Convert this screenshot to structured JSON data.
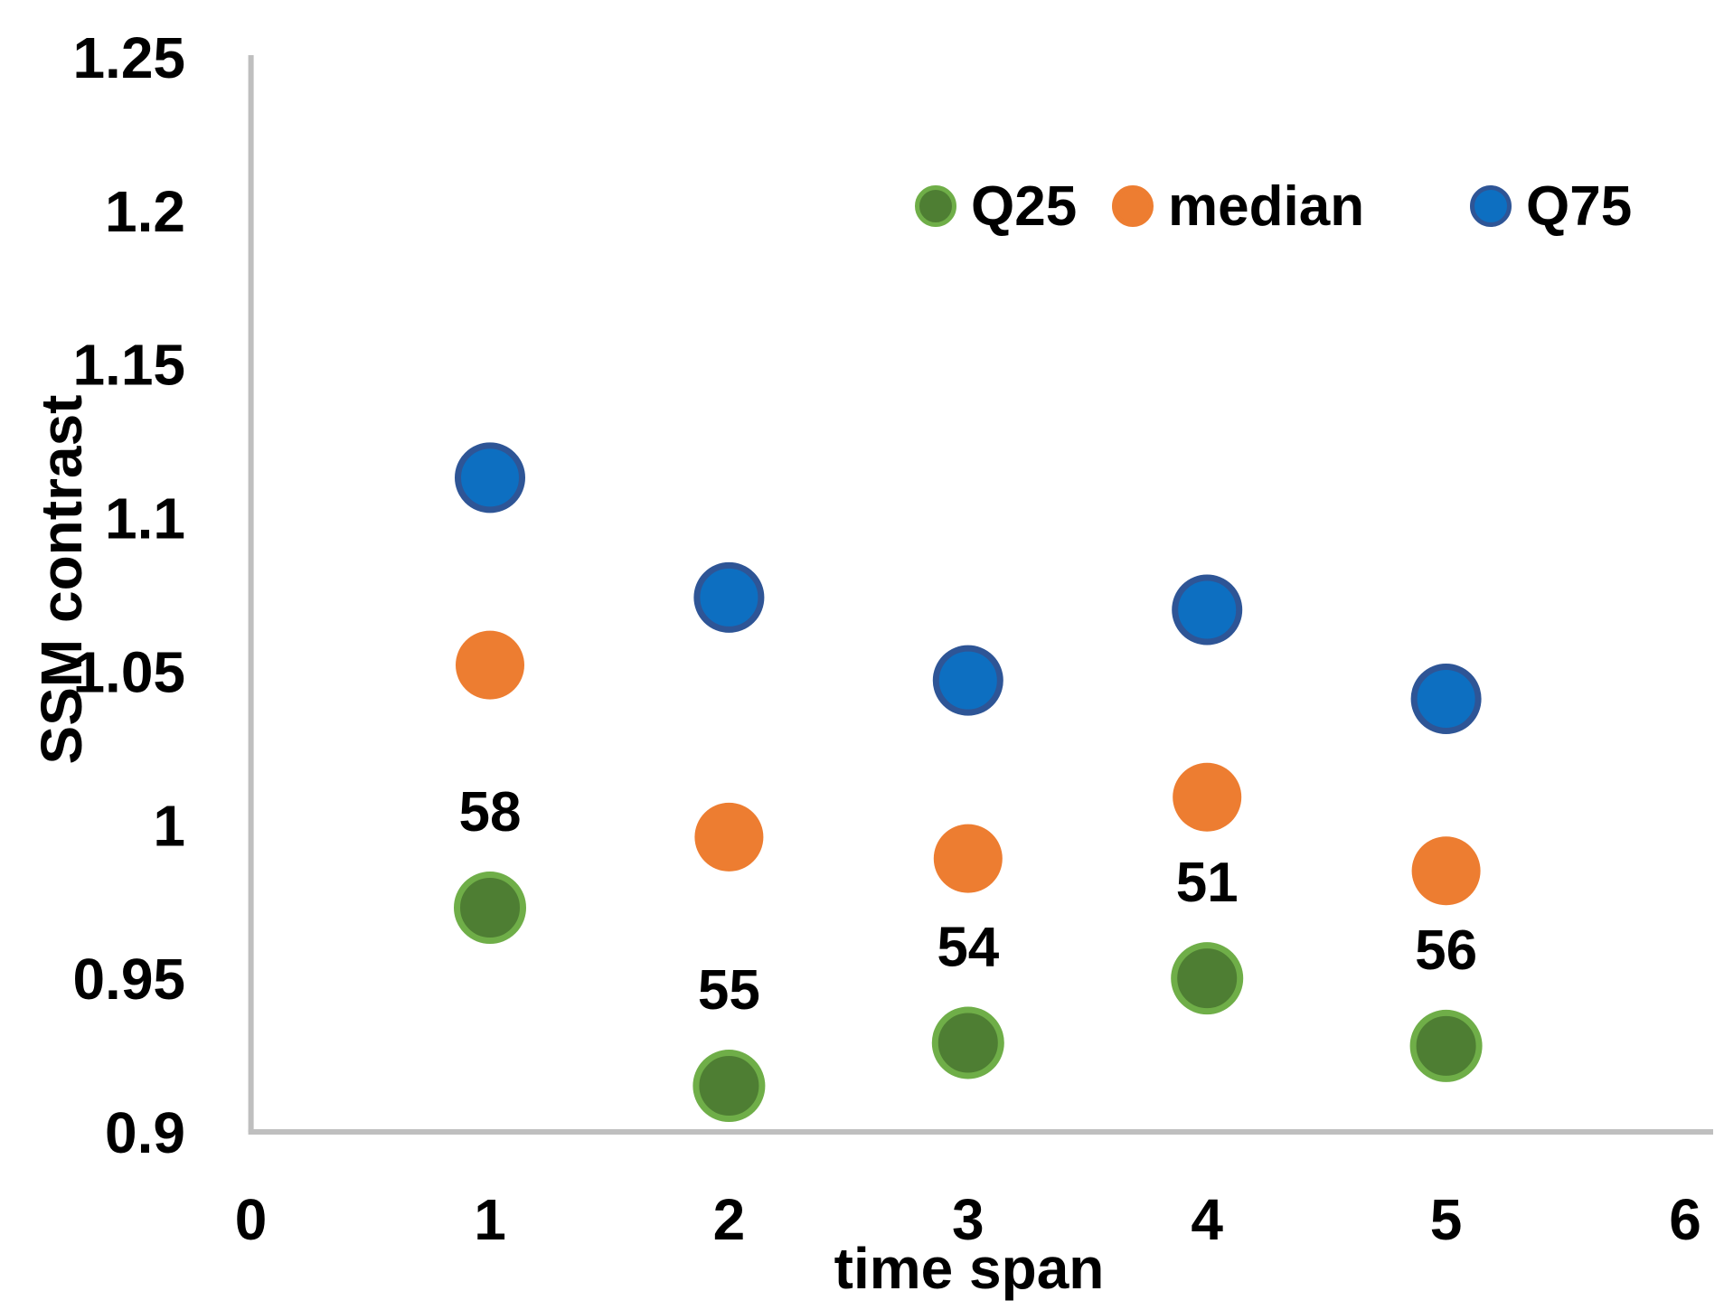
{
  "chart_data": {
    "type": "scatter",
    "title": "",
    "xlabel": "time span",
    "ylabel": "SSM contrast",
    "xlim": [
      0,
      6
    ],
    "ylim": [
      0.9,
      1.25
    ],
    "grid": false,
    "x_ticks": [
      "0",
      "1",
      "2",
      "3",
      "4",
      "5",
      "6"
    ],
    "x_tick_values": [
      0,
      1,
      2,
      3,
      4,
      5,
      6
    ],
    "y_ticks": [
      "1.25",
      "1.2",
      "1.15",
      "1.1",
      "1.05",
      "1",
      "0.95",
      "0.9"
    ],
    "y_tick_values": [
      1.25,
      1.2,
      1.15,
      1.1,
      1.05,
      1.0,
      0.95,
      0.9
    ],
    "x": [
      1,
      2,
      3,
      4,
      5
    ],
    "series": [
      {
        "name": "Q25",
        "fill": "#4E7E33",
        "stroke": "#6FAE48",
        "values": [
          0.973,
          0.915,
          0.929,
          0.95,
          0.928
        ]
      },
      {
        "name": "median",
        "fill": "#ED7D31",
        "stroke": "#ED7D31",
        "values": [
          1.052,
          0.996,
          0.989,
          1.009,
          0.985
        ]
      },
      {
        "name": "Q75",
        "fill": "#0D6FC1",
        "stroke": "#2E5596",
        "values": [
          1.113,
          1.074,
          1.047,
          1.07,
          1.041
        ]
      }
    ],
    "point_labels": {
      "attached_series": "Q25",
      "values": [
        "58",
        "55",
        "54",
        "51",
        "56"
      ]
    },
    "legend": {
      "position": "top-right",
      "items": [
        "Q25",
        "median",
        "Q75"
      ]
    },
    "axis_color": "#BFBFBF",
    "text_color": "#000000"
  }
}
